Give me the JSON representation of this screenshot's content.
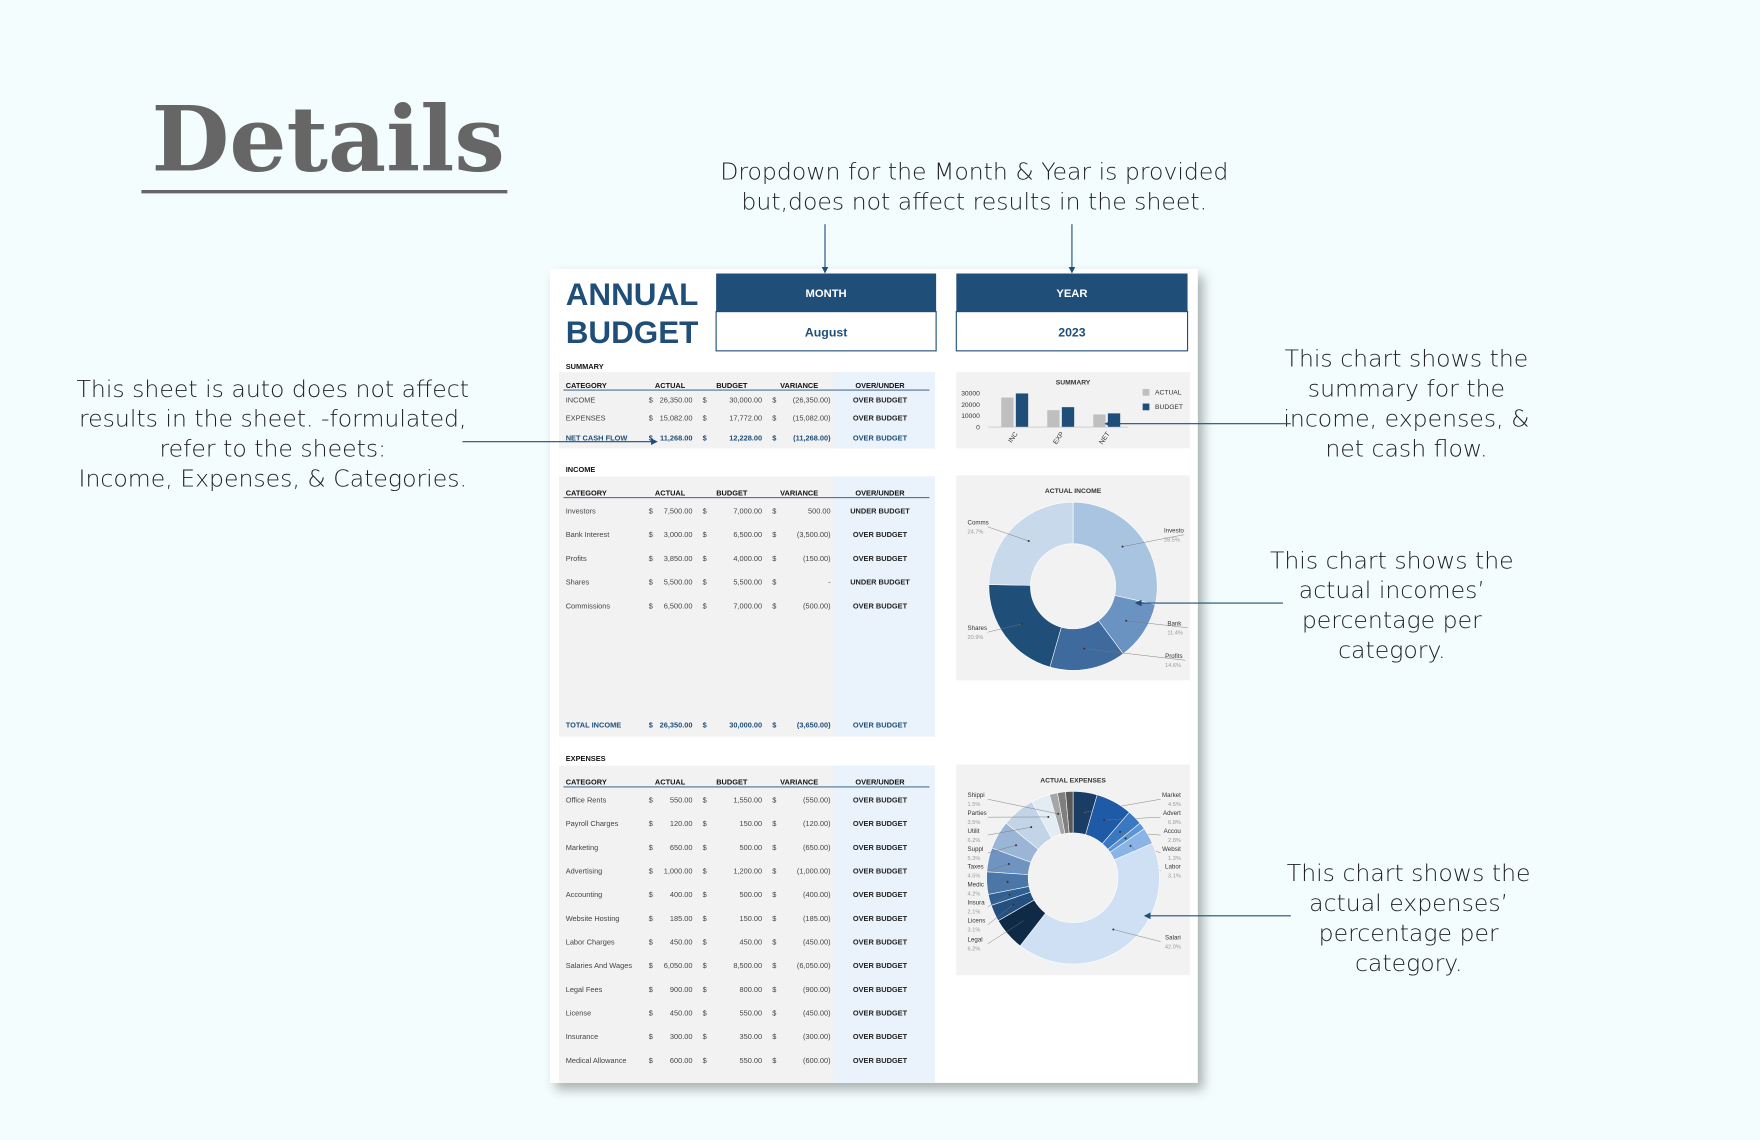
{
  "header": {
    "title": "Details"
  },
  "annotations": [
    {
      "lines": [
        "Dropdown for the Month & Year is provided",
        "but,does not affect results in the sheet."
      ]
    },
    {
      "lines": [
        "This sheet is auto does not affect",
        "results in the sheet. -formulated,",
        "refer to the sheets:",
        "Income, Expenses, & Categories."
      ]
    },
    {
      "lines": [
        "This chart shows the",
        "summary for the",
        "income, expenses, &",
        "net cash flow."
      ]
    },
    {
      "lines": [
        "This chart shows the",
        "actual incomes’",
        "percentage per",
        "category."
      ]
    },
    {
      "lines": [
        "This chart shows the",
        "actual expenses’",
        "percentage per",
        "category."
      ]
    }
  ],
  "sheet": {
    "title": [
      "ANNUAL",
      "BUDGET"
    ],
    "month": {
      "label": "MONTH",
      "value": "August"
    },
    "year": {
      "label": "YEAR",
      "value": "2023"
    },
    "summary": {
      "title": "SUMMARY",
      "columns": [
        "CATEGORY",
        "ACTUAL",
        "BUDGET",
        "VARIANCE",
        "OVER/UNDER"
      ],
      "rows": [
        [
          "INCOME",
          "$",
          "26,350.00",
          "$",
          "30,000.00",
          "$",
          "(26,350.00)",
          "OVER BUDGET"
        ],
        [
          "EXPENSES",
          "$",
          "15,082.00",
          "$",
          "17,772.00",
          "$",
          "(15,082.00)",
          "OVER BUDGET"
        ]
      ],
      "total": [
        "NET CASH FLOW",
        "$",
        "11,268.00",
        "$",
        "12,228.00",
        "$",
        "(11,268.00)",
        "OVER BUDGET"
      ]
    },
    "income": {
      "title": "INCOME",
      "columns": [
        "CATEGORY",
        "ACTUAL",
        "BUDGET",
        "VARIANCE",
        "OVER/UNDER"
      ],
      "rows": [
        [
          "Investors",
          "$",
          "7,500.00",
          "$",
          "7,000.00",
          "$",
          "500.00",
          "UNDER BUDGET"
        ],
        [
          "Bank Interest",
          "$",
          "3,000.00",
          "$",
          "6,500.00",
          "$",
          "(3,500.00)",
          "OVER BUDGET"
        ],
        [
          "Profits",
          "$",
          "3,850.00",
          "$",
          "4,000.00",
          "$",
          "(150.00)",
          "OVER BUDGET"
        ],
        [
          "Shares",
          "$",
          "5,500.00",
          "$",
          "5,500.00",
          "$",
          "-",
          "UNDER BUDGET"
        ],
        [
          "Commissions",
          "$",
          "6,500.00",
          "$",
          "7,000.00",
          "$",
          "(500.00)",
          "OVER BUDGET"
        ]
      ],
      "total": [
        "TOTAL INCOME",
        "$",
        "26,350.00",
        "$",
        "30,000.00",
        "$",
        "(3,650.00)",
        "OVER BUDGET"
      ]
    },
    "expenses": {
      "title": "EXPENSES",
      "columns": [
        "CATEGORY",
        "ACTUAL",
        "BUDGET",
        "VARIANCE",
        "OVER/UNDER"
      ],
      "rows": [
        [
          "Office Rents",
          "$",
          "550.00",
          "$",
          "1,550.00",
          "$",
          "(550.00)",
          "OVER BUDGET"
        ],
        [
          "Payroll Charges",
          "$",
          "120.00",
          "$",
          "150.00",
          "$",
          "(120.00)",
          "OVER BUDGET"
        ],
        [
          "Marketing",
          "$",
          "650.00",
          "$",
          "500.00",
          "$",
          "(650.00)",
          "OVER BUDGET"
        ],
        [
          "Advertising",
          "$",
          "1,000.00",
          "$",
          "1,200.00",
          "$",
          "(1,000.00)",
          "OVER BUDGET"
        ],
        [
          "Accounting",
          "$",
          "400.00",
          "$",
          "500.00",
          "$",
          "(400.00)",
          "OVER BUDGET"
        ],
        [
          "Website Hosting",
          "$",
          "185.00",
          "$",
          "150.00",
          "$",
          "(185.00)",
          "OVER BUDGET"
        ],
        [
          "Labor Charges",
          "$",
          "450.00",
          "$",
          "450.00",
          "$",
          "(450.00)",
          "OVER BUDGET"
        ],
        [
          "Salaries And Wages",
          "$",
          "6,050.00",
          "$",
          "8,500.00",
          "$",
          "(6,050.00)",
          "OVER BUDGET"
        ],
        [
          "Legal Fees",
          "$",
          "900.00",
          "$",
          "800.00",
          "$",
          "(900.00)",
          "OVER BUDGET"
        ],
        [
          "License",
          "$",
          "450.00",
          "$",
          "550.00",
          "$",
          "(450.00)",
          "OVER BUDGET"
        ],
        [
          "Insurance",
          "$",
          "300.00",
          "$",
          "350.00",
          "$",
          "(300.00)",
          "OVER BUDGET"
        ],
        [
          "Medical Allowance",
          "$",
          "600.00",
          "$",
          "550.00",
          "$",
          "(600.00)",
          "OVER BUDGET"
        ]
      ]
    }
  },
  "chart_data": [
    {
      "type": "bar",
      "title": "SUMMARY",
      "categories": [
        "INC",
        "EXP",
        "NET"
      ],
      "series": [
        {
          "name": "ACTUAL",
          "color": "#bfbfbf",
          "values": [
            26350,
            15082,
            11268
          ]
        },
        {
          "name": "BUDGET",
          "color": "#1f4e79",
          "values": [
            30000,
            17772,
            12228
          ]
        }
      ],
      "ylim": [
        0,
        30000
      ],
      "yticks": [
        0,
        10000,
        20000,
        30000
      ]
    },
    {
      "type": "pie",
      "title": "ACTUAL INCOME",
      "categories": [
        "Investo",
        "Bank",
        "Profits",
        "Shares",
        "Comms"
      ],
      "values": [
        28.5,
        11.4,
        14.6,
        20.9,
        24.7
      ],
      "value_labels": [
        "28.5%",
        "11.4%",
        "14.6%",
        "20.9%",
        "24.7%"
      ],
      "colors": [
        "#a9c4e0",
        "#6a93c2",
        "#3e6a9e",
        "#1f4e79",
        "#c9d9ec"
      ]
    },
    {
      "type": "pie",
      "title": "ACTUAL EXPENSES",
      "categories": [
        "Market",
        "Advert",
        "Accou",
        "Websit",
        "Labor",
        "Salari",
        "Legal",
        "Licens",
        "Insura",
        "Medic",
        "Taxes",
        "Suppl",
        "Utilit",
        "Parties",
        "Shippi",
        null,
        null
      ],
      "values": [
        4.5,
        6.8,
        2.8,
        1.3,
        3.1,
        42.0,
        6.2,
        3.1,
        2.1,
        4.2,
        4.5,
        5.3,
        6.2,
        3.5,
        1.5,
        1.5,
        1.4
      ],
      "value_labels": [
        "4.5%",
        "6.8%",
        "2.8%",
        "1.3%",
        "3.1%",
        "42.0%",
        "6.2%",
        "3.1%",
        "2.1%",
        "4.2%",
        "4.5%",
        "5.3%",
        "6.2%",
        "3.5%",
        "1.5%",
        null,
        null
      ],
      "colors": [
        "#1a3d66",
        "#1f5aa6",
        "#3a78c2",
        "#5c95d6",
        "#8ab4e6",
        "#cfe0f4",
        "#0e2a47",
        "#24507f",
        "#2f5f93",
        "#4a76a8",
        "#6f94bf",
        "#9ab5d5",
        "#c3d4e8",
        "#e3ebf4",
        "#a6a6a6",
        "#7f7f7f",
        "#595959"
      ]
    }
  ]
}
